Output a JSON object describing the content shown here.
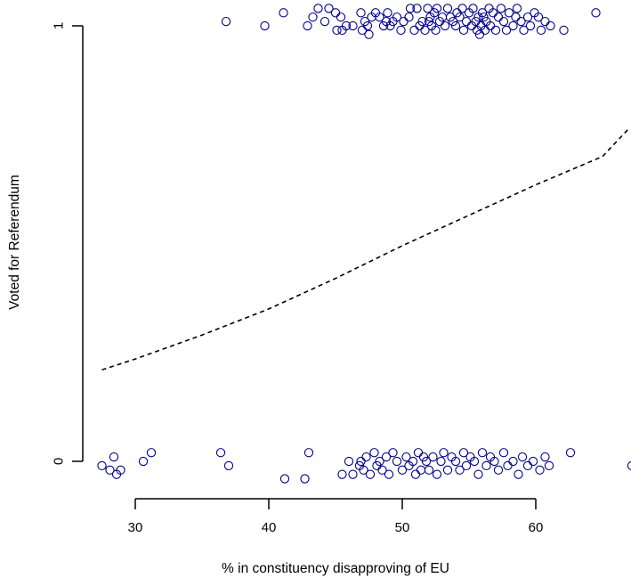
{
  "chart_data": {
    "type": "scatter",
    "title": "",
    "xlabel": "% in constituency disapproving of EU",
    "ylabel": "Voted for Referendum",
    "xlim": [
      27,
      67
    ],
    "ylim": [
      0,
      1
    ],
    "x_ticks": [
      30,
      40,
      50,
      60
    ],
    "x_tick_labels": [
      "30",
      "40",
      "50",
      "60"
    ],
    "y_ticks": [
      0,
      1
    ],
    "y_tick_labels": [
      "0",
      "1"
    ],
    "grid": false,
    "point_color": "#00008B",
    "fit_line_color": "#000000",
    "fit_line_style": "dashed",
    "jitter": "vertical",
    "series": [
      {
        "outcome": 1,
        "x": [
          36.8,
          39.7,
          41.1,
          42.9,
          43.3,
          43.7,
          44.2,
          44.5,
          45.0,
          45.1,
          45.4,
          45.5,
          45.8,
          46.3,
          46.9,
          47.0,
          47.2,
          47.4,
          47.5,
          47.7,
          48.0,
          48.3,
          48.6,
          48.8,
          48.9,
          49.1,
          49.3,
          49.6,
          49.9,
          50.1,
          50.5,
          50.6,
          50.9,
          51.1,
          51.3,
          51.5,
          51.7,
          51.9,
          52.0,
          52.1,
          52.2,
          52.4,
          52.5,
          52.6,
          52.8,
          53.0,
          53.2,
          53.4,
          53.6,
          53.8,
          54.0,
          54.1,
          54.3,
          54.5,
          54.6,
          54.8,
          55.0,
          55.2,
          55.3,
          55.5,
          55.6,
          55.7,
          55.8,
          55.9,
          56.0,
          56.1,
          56.2,
          56.3,
          56.5,
          56.6,
          56.8,
          57.0,
          57.2,
          57.4,
          57.6,
          57.8,
          58.0,
          58.3,
          58.5,
          58.6,
          58.9,
          59.1,
          59.4,
          59.6,
          59.9,
          60.2,
          60.4,
          60.7,
          61.1,
          62.1,
          64.5
        ],
        "y": [
          1.01,
          1.0,
          1.03,
          1.0,
          1.02,
          1.04,
          1.01,
          1.04,
          1.03,
          0.99,
          1.02,
          0.99,
          1.0,
          1.0,
          1.03,
          0.99,
          1.01,
          1.0,
          0.98,
          1.02,
          1.03,
          1.02,
          1.0,
          1.01,
          1.03,
          1.0,
          1.01,
          1.02,
          0.99,
          1.01,
          1.02,
          1.04,
          0.99,
          1.04,
          1.0,
          1.01,
          0.99,
          1.04,
          1.01,
          1.02,
          1.0,
          1.03,
          0.99,
          1.04,
          1.01,
          1.02,
          1.0,
          1.04,
          1.02,
          1.01,
          1.0,
          1.03,
          1.02,
          1.04,
          0.99,
          1.01,
          1.03,
          1.0,
          1.04,
          1.01,
          0.99,
          1.02,
          0.98,
          1.0,
          1.03,
          1.02,
          0.99,
          1.01,
          1.04,
          1.0,
          1.03,
          0.99,
          1.02,
          1.04,
          1.01,
          0.99,
          1.03,
          1.0,
          1.02,
          1.04,
          1.01,
          0.99,
          1.02,
          1.0,
          1.03,
          1.02,
          0.99,
          1.01,
          1.0,
          0.99,
          1.03
        ]
      },
      {
        "outcome": 0,
        "x": [
          27.5,
          28.1,
          28.4,
          28.6,
          28.9,
          30.6,
          31.2,
          36.4,
          37.0,
          41.2,
          42.7,
          43.0,
          45.5,
          46.0,
          46.3,
          46.8,
          46.9,
          47.1,
          47.3,
          47.6,
          47.9,
          48.1,
          48.3,
          48.5,
          48.8,
          49.0,
          49.3,
          49.6,
          50.0,
          50.3,
          50.5,
          50.8,
          51.0,
          51.2,
          51.4,
          51.6,
          51.8,
          52.0,
          52.3,
          52.6,
          52.9,
          53.1,
          53.4,
          53.7,
          54.0,
          54.3,
          54.6,
          54.8,
          55.1,
          55.4,
          55.7,
          56.0,
          56.3,
          56.6,
          56.9,
          57.2,
          57.6,
          57.9,
          58.3,
          58.7,
          59.0,
          59.4,
          59.8,
          60.3,
          60.7,
          61.0,
          62.6,
          67.2
        ],
        "y": [
          -0.01,
          -0.02,
          0.01,
          -0.03,
          -0.02,
          0.0,
          0.02,
          0.02,
          -0.01,
          -0.04,
          -0.04,
          0.02,
          -0.03,
          0.0,
          -0.03,
          -0.01,
          0.0,
          -0.02,
          0.01,
          -0.03,
          0.02,
          -0.01,
          0.0,
          -0.02,
          0.01,
          -0.03,
          0.02,
          0.0,
          -0.02,
          0.01,
          -0.01,
          0.0,
          -0.03,
          0.02,
          -0.02,
          0.01,
          0.0,
          -0.02,
          0.01,
          -0.03,
          0.0,
          0.02,
          -0.02,
          0.01,
          0.0,
          -0.02,
          0.02,
          -0.01,
          0.01,
          0.0,
          -0.03,
          0.02,
          -0.01,
          0.01,
          0.0,
          -0.02,
          0.02,
          -0.01,
          0.0,
          -0.03,
          0.01,
          -0.01,
          0.0,
          -0.02,
          0.01,
          -0.01,
          0.02,
          -0.01
        ]
      }
    ],
    "fitted_curve": {
      "x": [
        27.5,
        30,
        35,
        40,
        45,
        50,
        55,
        60,
        65,
        67
      ],
      "y": [
        0.21,
        0.235,
        0.29,
        0.35,
        0.42,
        0.495,
        0.565,
        0.635,
        0.7,
        0.765
      ]
    }
  }
}
